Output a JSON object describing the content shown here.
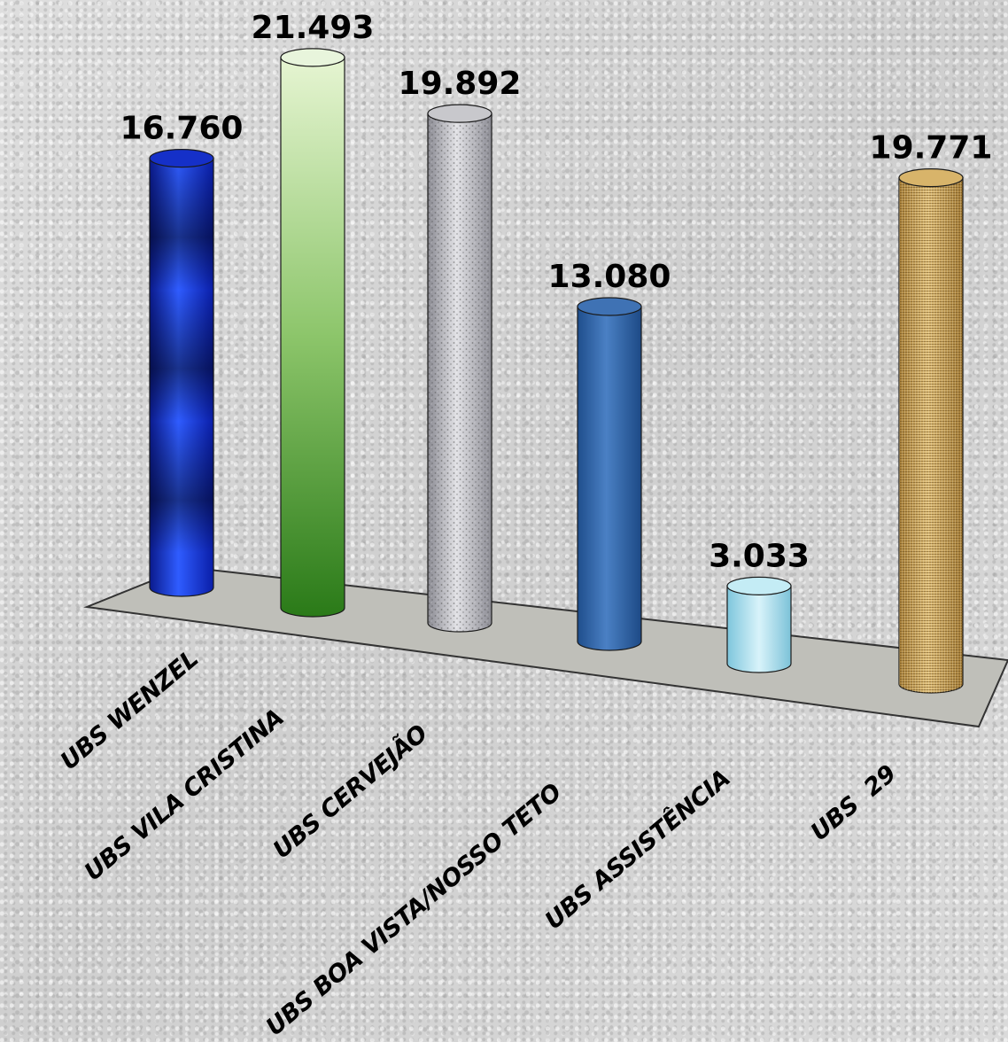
{
  "chart_data": {
    "type": "bar",
    "title": "",
    "xlabel": "",
    "ylabel": "",
    "categories": [
      "UBS WENZEL",
      "UBS VILA CRISTINA",
      "UBS CERVEJÃO",
      "UBS BOA VISTA/NOSSO TETO",
      "UBS ASSISTÊNCIA",
      "UBS  29"
    ],
    "values": [
      16760,
      21493,
      19892,
      13080,
      3033,
      19771
    ],
    "value_labels": [
      "16.760",
      "21.493",
      "19.892",
      "13.080",
      "3.033",
      "19.771"
    ],
    "bar_colors": [
      "#1a3fe0",
      "#6fb04a",
      "#a9a9b2",
      "#3a6db0",
      "#a8e0ee",
      "#c9a25a"
    ],
    "grid": false,
    "legend": "none",
    "style": "3d-cylinders"
  }
}
